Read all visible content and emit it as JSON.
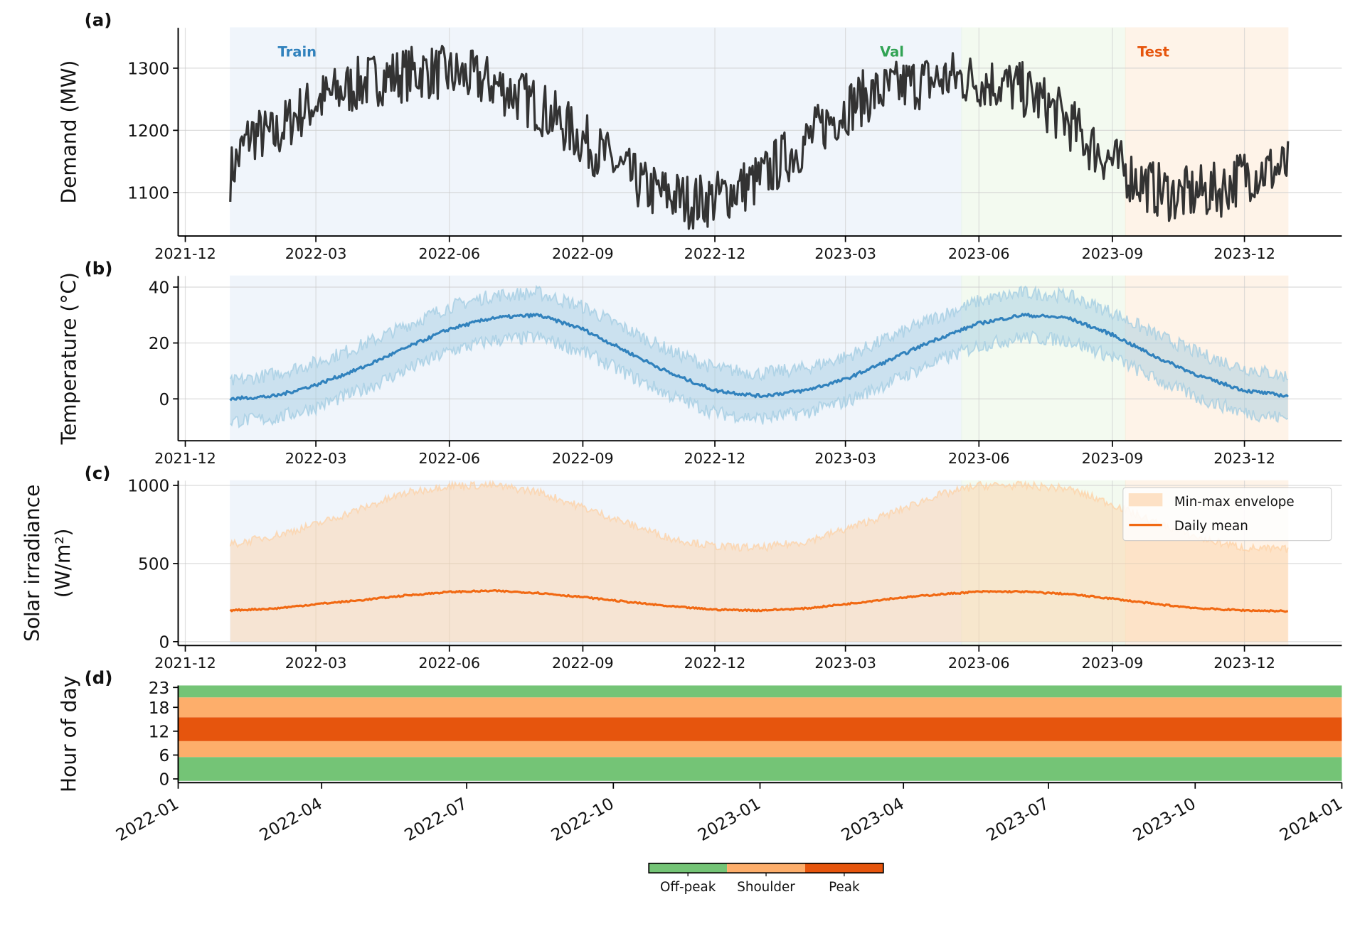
{
  "chart_data": [
    {
      "panel_label": "(a)",
      "type": "line",
      "ylabel": "Demand (MW)",
      "yticks": [
        1100,
        1200,
        1300
      ],
      "ylim": [
        1030,
        1365
      ],
      "xticks": [
        "2021-12",
        "2022-03",
        "2022-06",
        "2022-09",
        "2022-12",
        "2023-03",
        "2023-06",
        "2023-09",
        "2023-12"
      ],
      "grid": true,
      "line_color": "#333333",
      "splits": [
        {
          "name": "Train",
          "start": "2022-01-01",
          "end": "2023-05-20",
          "color": "#3182bd",
          "fill": "#deebf7"
        },
        {
          "name": "Val",
          "start": "2023-05-20",
          "end": "2023-09-10",
          "color": "#31a354",
          "fill": "#e5f5e0"
        },
        {
          "name": "Test",
          "start": "2023-09-10",
          "end": "2023-12-31",
          "color": "#e6550d",
          "fill": "#fee6ce"
        }
      ],
      "x": [
        "2022-01-01",
        "2022-01-15",
        "2022-02-01",
        "2022-02-15",
        "2022-03-01",
        "2022-03-15",
        "2022-04-01",
        "2022-04-15",
        "2022-05-01",
        "2022-05-15",
        "2022-06-01",
        "2022-06-15",
        "2022-07-01",
        "2022-07-15",
        "2022-08-01",
        "2022-08-15",
        "2022-09-01",
        "2022-09-15",
        "2022-10-01",
        "2022-10-15",
        "2022-11-01",
        "2022-11-15",
        "2022-12-01",
        "2022-12-15",
        "2023-01-01",
        "2023-01-15",
        "2023-02-01",
        "2023-02-15",
        "2023-03-01",
        "2023-03-15",
        "2023-04-01",
        "2023-04-15",
        "2023-05-01",
        "2023-05-15",
        "2023-06-01",
        "2023-06-15",
        "2023-07-01",
        "2023-07-15",
        "2023-08-01",
        "2023-08-15",
        "2023-09-01",
        "2023-09-15",
        "2023-10-01",
        "2023-10-15",
        "2023-11-01",
        "2023-11-15",
        "2023-12-01",
        "2023-12-31"
      ],
      "values": [
        1130,
        1195,
        1190,
        1225,
        1245,
        1260,
        1275,
        1285,
        1290,
        1295,
        1290,
        1285,
        1275,
        1260,
        1240,
        1215,
        1185,
        1160,
        1130,
        1105,
        1095,
        1085,
        1090,
        1105,
        1120,
        1150,
        1180,
        1210,
        1235,
        1255,
        1265,
        1275,
        1280,
        1285,
        1280,
        1275,
        1265,
        1245,
        1215,
        1180,
        1150,
        1125,
        1105,
        1095,
        1100,
        1105,
        1130,
        1140
      ]
    },
    {
      "panel_label": "(b)",
      "type": "line",
      "ylabel": "Temperature (°C)",
      "yticks": [
        0,
        20,
        40
      ],
      "ylim": [
        -15,
        44
      ],
      "grid": true,
      "line_color": "#3182bd",
      "envelope_color": "#9ecae1",
      "x": [
        "2022-01-01",
        "2022-02-01",
        "2022-03-01",
        "2022-04-01",
        "2022-05-01",
        "2022-06-01",
        "2022-07-01",
        "2022-08-01",
        "2022-09-01",
        "2022-10-01",
        "2022-11-01",
        "2022-12-01",
        "2023-01-01",
        "2023-02-01",
        "2023-03-01",
        "2023-04-01",
        "2023-05-01",
        "2023-06-01",
        "2023-07-01",
        "2023-08-01",
        "2023-09-01",
        "2023-10-01",
        "2023-11-01",
        "2023-12-01",
        "2023-12-31"
      ],
      "mean": [
        0,
        1,
        5,
        11,
        18,
        25,
        29,
        30,
        25,
        17,
        9,
        3,
        1,
        3,
        7,
        14,
        21,
        27,
        30,
        29,
        23,
        15,
        8,
        3,
        1
      ],
      "min": [
        -8,
        -7,
        -3,
        3,
        10,
        17,
        21,
        22,
        17,
        9,
        1,
        -5,
        -7,
        -5,
        -1,
        6,
        13,
        19,
        22,
        21,
        15,
        7,
        0,
        -5,
        -7
      ],
      "max": [
        6,
        9,
        13,
        19,
        26,
        33,
        37,
        38,
        33,
        25,
        17,
        11,
        9,
        11,
        15,
        22,
        29,
        35,
        38,
        37,
        31,
        23,
        16,
        11,
        8
      ]
    },
    {
      "panel_label": "(c)",
      "type": "area",
      "ylabel": [
        "Solar irradiance",
        "(W/m²)"
      ],
      "yticks": [
        0,
        500,
        1000
      ],
      "ylim": [
        -25,
        1030
      ],
      "grid": true,
      "line_color": "#f16913",
      "envelope_color": "#fdd0a2",
      "legend": {
        "placement": "top-right",
        "entries": [
          "Min-max envelope",
          "Daily mean"
        ]
      },
      "x": [
        "2022-01-01",
        "2022-02-01",
        "2022-03-01",
        "2022-04-01",
        "2022-05-01",
        "2022-06-01",
        "2022-07-01",
        "2022-08-01",
        "2022-09-01",
        "2022-10-01",
        "2022-11-01",
        "2022-12-01",
        "2023-01-01",
        "2023-02-01",
        "2023-03-01",
        "2023-04-01",
        "2023-05-01",
        "2023-06-01",
        "2023-07-01",
        "2023-08-01",
        "2023-09-01",
        "2023-10-01",
        "2023-11-01",
        "2023-12-01",
        "2023-12-31"
      ],
      "mean": [
        200,
        212,
        240,
        265,
        295,
        318,
        325,
        312,
        285,
        255,
        225,
        205,
        200,
        212,
        240,
        275,
        300,
        320,
        320,
        305,
        275,
        240,
        212,
        200,
        195
      ],
      "min": [
        0,
        0,
        0,
        0,
        0,
        0,
        0,
        0,
        0,
        0,
        0,
        0,
        0,
        0,
        0,
        0,
        0,
        0,
        0,
        0,
        0,
        0,
        0,
        0,
        0
      ],
      "max": [
        620,
        680,
        750,
        850,
        950,
        1000,
        1000,
        960,
        860,
        760,
        660,
        610,
        600,
        640,
        720,
        820,
        930,
        1000,
        1000,
        980,
        880,
        760,
        660,
        600,
        590
      ]
    },
    {
      "panel_label": "(d)",
      "type": "heatmap",
      "ylabel": "Hour of day",
      "yticks": [
        0,
        6,
        12,
        18,
        23
      ],
      "xticks": [
        "2022-01",
        "2022-04",
        "2022-07",
        "2022-10",
        "2023-01",
        "2023-04",
        "2023-07",
        "2023-10",
        "2024-01"
      ],
      "xlim": [
        "2022-01-01",
        "2024-01-01"
      ],
      "bands": [
        {
          "from_hour": 0,
          "to_hour": 6,
          "category": "Off-peak"
        },
        {
          "from_hour": 6,
          "to_hour": 10,
          "category": "Shoulder"
        },
        {
          "from_hour": 10,
          "to_hour": 16,
          "category": "Peak"
        },
        {
          "from_hour": 16,
          "to_hour": 21,
          "category": "Shoulder"
        },
        {
          "from_hour": 21,
          "to_hour": 24,
          "category": "Off-peak"
        }
      ],
      "colorbar": [
        {
          "label": "Off-peak",
          "color": "#74c476"
        },
        {
          "label": "Shoulder",
          "color": "#fdae6b"
        },
        {
          "label": "Peak",
          "color": "#e6550d"
        }
      ]
    }
  ]
}
